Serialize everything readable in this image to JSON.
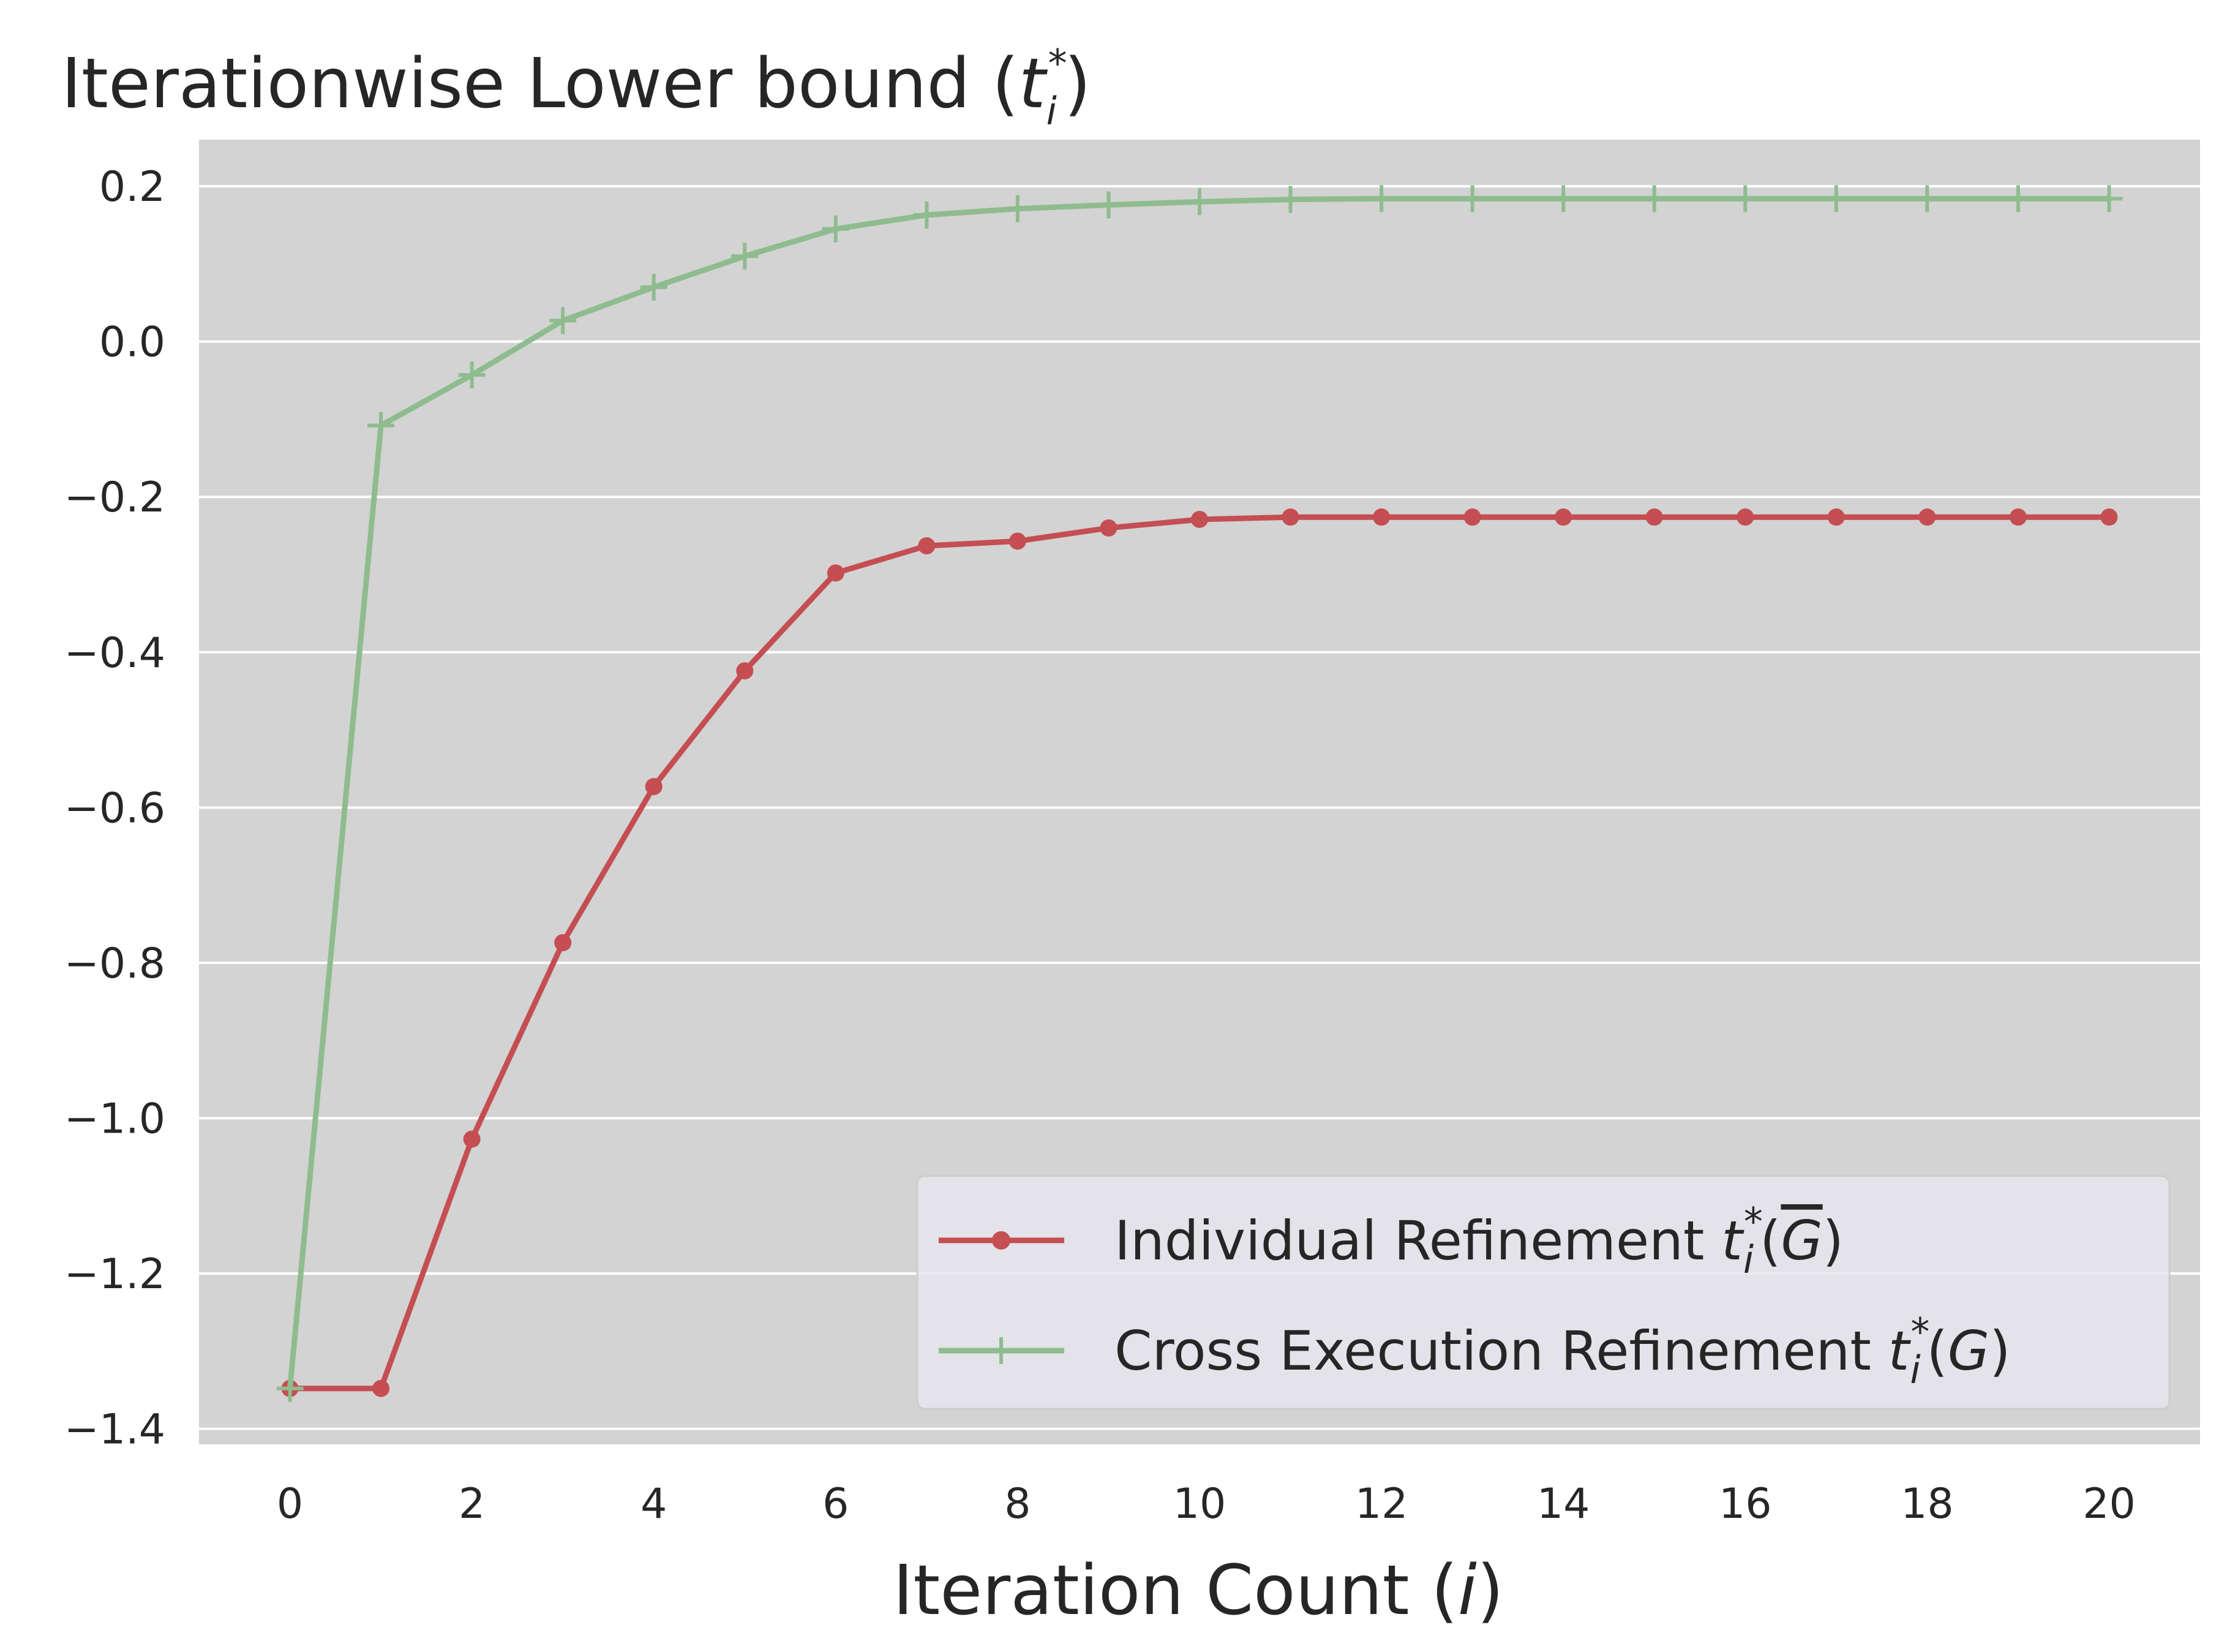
{
  "chart_data": {
    "type": "line",
    "title": {
      "main": "Iterationwise Lower bound (",
      "var": "t",
      "sub": "i",
      "sup": "*",
      "close": ")"
    },
    "xlabel": {
      "main": "Iteration Count (",
      "var": "i",
      "close": ")"
    },
    "ylabel": "",
    "xlim": [
      -1,
      21
    ],
    "ylim": [
      -1.42,
      0.26
    ],
    "xticks": [
      0,
      2,
      4,
      6,
      8,
      10,
      12,
      14,
      16,
      18,
      20
    ],
    "xtick_labels": [
      "0",
      "2",
      "4",
      "6",
      "8",
      "10",
      "12",
      "14",
      "16",
      "18",
      "20"
    ],
    "yticks": [
      0.2,
      0.0,
      -0.2,
      -0.4,
      -0.6,
      -0.8,
      -1.0,
      -1.2,
      -1.4
    ],
    "ytick_labels": [
      "0.2",
      "0.0",
      "−0.2",
      "−0.4",
      "−0.6",
      "−0.8",
      "−1.0",
      "−1.2",
      "−1.4"
    ],
    "grid": true,
    "legend_position": "lower-right",
    "x": [
      0,
      1,
      2,
      3,
      4,
      5,
      6,
      7,
      8,
      9,
      10,
      11,
      12,
      13,
      14,
      15,
      16,
      17,
      18,
      19,
      20
    ],
    "series": [
      {
        "name": "Individual Refinement t*i(G̅)",
        "legend_main": "Individual Refinement ",
        "legend_var": "t",
        "legend_sub": "i",
        "legend_sup": "*",
        "legend_arg": "G",
        "legend_arg_overline": true,
        "color": "#c44e52",
        "marker": "dot",
        "values": [
          -1.348,
          -1.348,
          -1.027,
          -0.774,
          -0.573,
          -0.424,
          -0.298,
          -0.263,
          -0.257,
          -0.24,
          -0.229,
          -0.226,
          -0.226,
          -0.226,
          -0.226,
          -0.226,
          -0.226,
          -0.226,
          -0.226,
          -0.226,
          -0.226
        ]
      },
      {
        "name": "Cross Execution Refinement t*i(G)",
        "legend_main": "Cross Execution Refinement ",
        "legend_var": "t",
        "legend_sub": "i",
        "legend_sup": "*",
        "legend_arg": "G",
        "legend_arg_overline": false,
        "color": "#8fbc8f",
        "marker": "plus",
        "values": [
          -1.348,
          -0.108,
          -0.043,
          0.027,
          0.07,
          0.11,
          0.145,
          0.163,
          0.171,
          0.176,
          0.18,
          0.183,
          0.184,
          0.184,
          0.184,
          0.184,
          0.184,
          0.184,
          0.184,
          0.184,
          0.184
        ]
      }
    ],
    "colors": {
      "plot_bg": "#d3d3d3",
      "grid": "#ffffff",
      "legend_bg": "#e5e5ec",
      "text": "#262626"
    }
  }
}
